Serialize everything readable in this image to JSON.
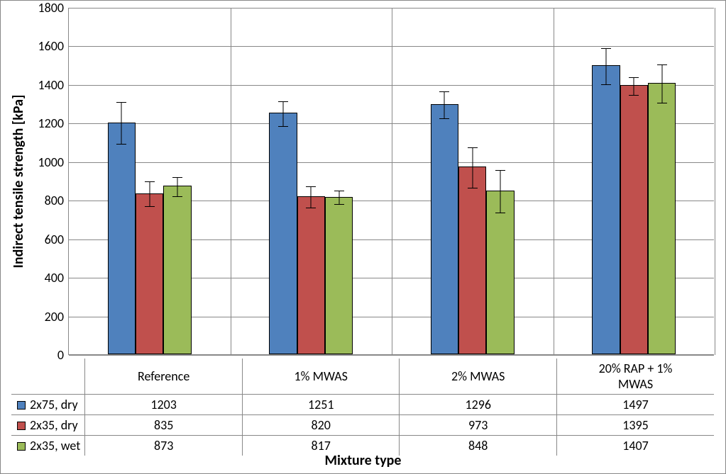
{
  "chart": {
    "type": "bar",
    "y_axis_title": "Indirect tensile strength [kPa]",
    "x_axis_title": "Mixture type",
    "title_fontsize": 20,
    "label_fontsize": 18,
    "ylim": [
      0,
      1800
    ],
    "ytick_step": 200,
    "yticks": [
      0,
      200,
      400,
      600,
      800,
      1000,
      1200,
      1400,
      1600,
      1800
    ],
    "categories": [
      "Reference",
      "1% MWAS",
      "2% MWAS",
      "20% RAP + 1% MWAS"
    ],
    "series": [
      {
        "name": "2x75, dry",
        "color": "#4f81bd",
        "values": [
          1203,
          1251,
          1296,
          1497
        ],
        "errors": [
          110,
          65,
          70,
          95
        ]
      },
      {
        "name": "2x35, dry",
        "color": "#c0504d",
        "values": [
          835,
          820,
          973,
          1395
        ],
        "errors": [
          65,
          55,
          105,
          45
        ]
      },
      {
        "name": "2x35, wet",
        "color": "#9bbb59",
        "values": [
          873,
          817,
          848,
          1407
        ],
        "errors": [
          50,
          35,
          110,
          100
        ]
      }
    ],
    "background_color": "#ffffff",
    "grid_color": "#888888",
    "bar_border_color": "#000000",
    "bar_group_width": 0.52,
    "error_cap_width": 14
  }
}
